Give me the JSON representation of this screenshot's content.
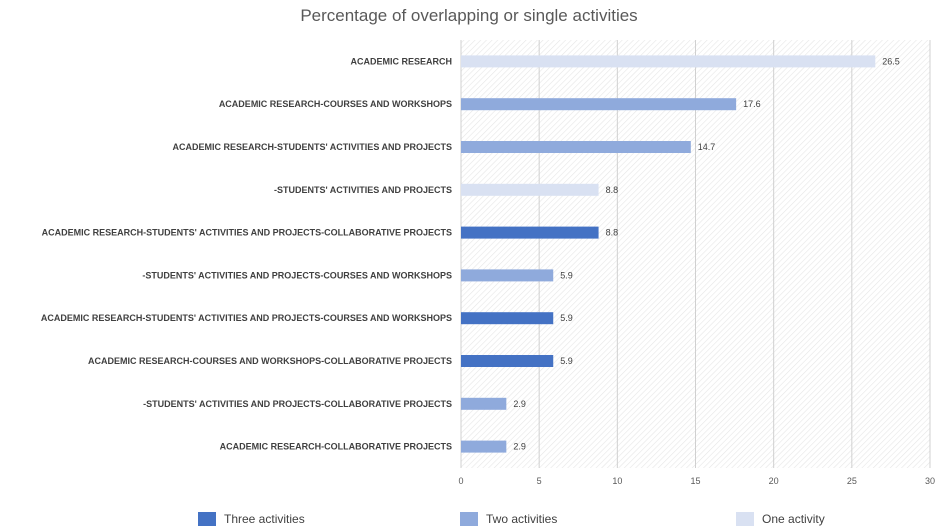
{
  "chart_data": {
    "type": "bar",
    "orientation": "horizontal",
    "title": "Percentage of overlapping or single activities",
    "xlim": [
      0,
      30
    ],
    "xticks": [
      0,
      5,
      10,
      15,
      20,
      25,
      30
    ],
    "grid": true,
    "legend_position": "bottom",
    "categories": [
      "ACADEMIC RESEARCH",
      "ACADEMIC RESEARCH-COURSES AND WORKSHOPS",
      "ACADEMIC RESEARCH-STUDENTS' ACTIVITIES AND PROJECTS",
      "-STUDENTS' ACTIVITIES AND PROJECTS",
      "ACADEMIC RESEARCH-STUDENTS' ACTIVITIES AND PROJECTS-COLLABORATIVE PROJECTS",
      "-STUDENTS' ACTIVITIES AND PROJECTS-COURSES AND WORKSHOPS",
      "ACADEMIC RESEARCH-STUDENTS' ACTIVITIES AND PROJECTS-COURSES AND WORKSHOPS",
      "ACADEMIC RESEARCH-COURSES AND WORKSHOPS-COLLABORATIVE PROJECTS",
      "-STUDENTS' ACTIVITIES AND PROJECTS-COLLABORATIVE PROJECTS",
      "ACADEMIC RESEARCH-COLLABORATIVE PROJECTS"
    ],
    "values": [
      26.5,
      17.6,
      14.7,
      8.8,
      8.8,
      5.9,
      5.9,
      5.9,
      2.9,
      2.9
    ],
    "value_labels": [
      "26.5",
      "17.6",
      "14.7",
      "8.8",
      "8.8",
      "5.9",
      "5.9",
      "5.9",
      "2.9",
      "2.9"
    ],
    "groups": [
      "one",
      "two",
      "two",
      "one",
      "three",
      "two",
      "three",
      "three",
      "two",
      "two"
    ],
    "legend": [
      {
        "key": "three",
        "label": "Three activities",
        "color": "#4472C4"
      },
      {
        "key": "two",
        "label": "Two activities",
        "color": "#8FAADC"
      },
      {
        "key": "one",
        "label": "One activity",
        "color": "#D9E1F2"
      }
    ]
  }
}
